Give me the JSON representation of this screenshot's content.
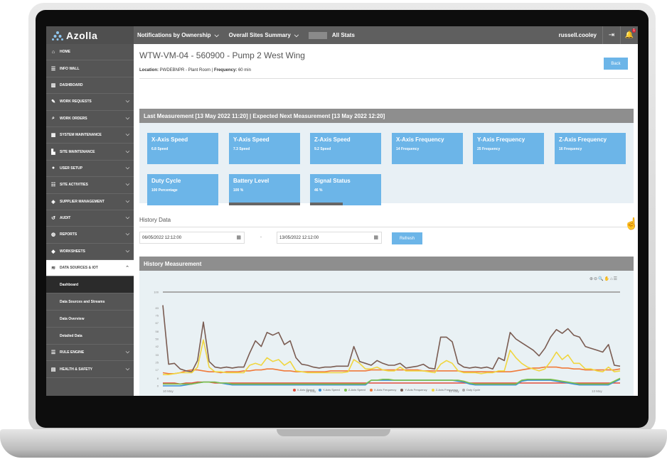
{
  "app": {
    "name": "Azolla"
  },
  "topnav": {
    "items": [
      {
        "label": "Notifications by Ownership"
      },
      {
        "label": "Overall Sites Summary"
      },
      {
        "label": "All Stats"
      }
    ],
    "user": "russell.cooley",
    "notification_count": "1"
  },
  "sidebar": {
    "items": [
      {
        "label": "HOME",
        "icon": "home-icon"
      },
      {
        "label": "INFO WALL",
        "icon": "list-icon"
      },
      {
        "label": "DASHBOARD",
        "icon": "chart-icon"
      },
      {
        "label": "WORK REQUESTS",
        "icon": "pencil-icon"
      },
      {
        "label": "WORK ORDERS",
        "icon": "search-icon"
      },
      {
        "label": "SYSTEM MAINTENANCE",
        "icon": "grid-icon"
      },
      {
        "label": "SITE MAINTENANCE",
        "icon": "factory-icon"
      },
      {
        "label": "USER SETUP",
        "icon": "user-icon"
      },
      {
        "label": "SITE ACTIVITIES",
        "icon": "list-icon"
      },
      {
        "label": "SUPPLIER MANAGEMENT",
        "icon": "box-icon"
      },
      {
        "label": "AUDIT",
        "icon": "history-icon"
      },
      {
        "label": "REPORTS",
        "icon": "database-icon"
      },
      {
        "label": "WORKSHEETS",
        "icon": "layers-icon"
      },
      {
        "label": "DATA SOURCES & IOT",
        "icon": "wifi-icon"
      }
    ],
    "subitems": [
      {
        "label": "Dashboard"
      },
      {
        "label": "Data Sources and Streams"
      },
      {
        "label": "Data Overview"
      },
      {
        "label": "Detailed Data"
      }
    ],
    "bottom_items": [
      {
        "label": "RULE ENGINE",
        "icon": "list-icon"
      },
      {
        "label": "HEALTH & SAFETY",
        "icon": "document-icon"
      }
    ]
  },
  "page": {
    "title": "WTW-VM-04 - 560900 - Pump 2 West Wing",
    "location_label": "Location:",
    "location_value": "PWDEBNPR - Plant Room",
    "frequency_label": "Frequency:",
    "frequency_value": "60 min",
    "back_label": "Back"
  },
  "measurement": {
    "header": "Last Measurement [13 May 2022 11:20] | Expected Next Measurement [13 May 2022 12:20]",
    "cards": [
      {
        "title": "X-Axis Speed",
        "value": "6.8 Speed"
      },
      {
        "title": "Y-Axis Speed",
        "value": "7.3 Speed"
      },
      {
        "title": "Z-Axis Speed",
        "value": "9.2 Speed"
      },
      {
        "title": "X-Axis Frequency",
        "value": "14 Frequency"
      },
      {
        "title": "Y-Axis Frequency",
        "value": "25 Frequency"
      },
      {
        "title": "Z-Axis Frequency",
        "value": "16 Frequency"
      },
      {
        "title": "Duty Cycle",
        "value": "100 Percentage"
      },
      {
        "title": "Battery Level",
        "value": "100 %",
        "level": 1.0
      },
      {
        "title": "Signal Status",
        "value": "46 %",
        "level": 0.46
      }
    ]
  },
  "history": {
    "title": "History Data",
    "from": "06/05/2022 12:12:00",
    "separator": "-",
    "to": "13/05/2022 12:12:00",
    "refresh_label": "Refresh",
    "chart_header": "History Measurement",
    "toolbar": "⊕⊖🔍✋⌂☰"
  },
  "chart_data": {
    "type": "line",
    "title": "",
    "xlabel": "",
    "ylabel": "",
    "x_ticks": [
      "10 May",
      "11 May",
      "12 May",
      "13 May"
    ],
    "y_ticks": [
      "0",
      "8",
      "17",
      "25",
      "33",
      "42",
      "50",
      "58",
      "67",
      "75",
      "83",
      "100"
    ],
    "ylim": [
      0,
      100
    ],
    "grid": false,
    "legend_position": "bottom",
    "series": [
      {
        "name": "X-Axis Speed",
        "color": "#e14d3c",
        "values": [
          3,
          3,
          3,
          2,
          3,
          3,
          4,
          4,
          4,
          3,
          3,
          3,
          3,
          3,
          3,
          3,
          3,
          3,
          3,
          3,
          3,
          3,
          3,
          3,
          3,
          3,
          3,
          3,
          3,
          3,
          3,
          3,
          3,
          3,
          3,
          3,
          3,
          3,
          3,
          3,
          3,
          3,
          3,
          3,
          3,
          3,
          3,
          3,
          3,
          3,
          3,
          3,
          3,
          3,
          3,
          3,
          3,
          3,
          3,
          3,
          3,
          3,
          3,
          3,
          3,
          3,
          3,
          3,
          3,
          3,
          3,
          3,
          3,
          3,
          3,
          3,
          3,
          3,
          3,
          3
        ]
      },
      {
        "name": "Y-Axis Speed",
        "color": "#3d8fd6",
        "values": [
          0,
          0,
          0,
          0,
          1,
          2,
          3,
          4,
          4,
          4,
          3,
          2,
          1,
          1,
          1,
          1,
          1,
          1,
          1,
          1,
          1,
          1,
          1,
          1,
          1,
          1,
          1,
          1,
          1,
          1,
          1,
          1,
          1,
          1,
          1,
          1,
          6,
          6,
          6,
          6,
          6,
          6,
          6,
          6,
          6,
          6,
          6,
          6,
          6,
          6,
          6,
          5,
          4,
          2,
          1,
          1,
          1,
          1,
          1,
          1,
          1,
          1,
          5,
          6,
          6,
          6,
          6,
          6,
          5,
          4,
          3,
          2,
          1,
          1,
          1,
          1,
          1,
          1,
          4,
          7
        ]
      },
      {
        "name": "Z-Axis Speed",
        "color": "#7cc04b",
        "values": [
          2,
          2,
          2,
          2,
          2,
          2,
          3,
          4,
          4,
          4,
          3,
          3,
          2,
          2,
          2,
          2,
          2,
          2,
          2,
          2,
          2,
          2,
          2,
          2,
          2,
          2,
          2,
          2,
          2,
          2,
          2,
          2,
          2,
          2,
          2,
          2,
          6,
          6,
          7,
          7,
          6,
          6,
          6,
          6,
          6,
          6,
          6,
          6,
          6,
          6,
          6,
          6,
          5,
          3,
          2,
          2,
          2,
          2,
          2,
          2,
          2,
          2,
          6,
          7,
          7,
          7,
          7,
          7,
          6,
          5,
          4,
          3,
          2,
          2,
          2,
          2,
          2,
          2,
          5,
          8
        ]
      },
      {
        "name": "X-Axis Frequency",
        "color": "#f07a3a",
        "values": [
          14,
          13,
          13,
          14,
          16,
          17,
          17,
          16,
          15,
          15,
          14,
          15,
          15,
          15,
          16,
          16,
          17,
          17,
          18,
          18,
          17,
          16,
          16,
          15,
          15,
          15,
          15,
          15,
          15,
          16,
          16,
          16,
          16,
          16,
          16,
          16,
          17,
          17,
          17,
          17,
          17,
          17,
          17,
          17,
          17,
          16,
          16,
          16,
          16,
          16,
          16,
          16,
          15,
          15,
          15,
          15,
          15,
          15,
          15,
          15,
          15,
          16,
          17,
          18,
          19,
          19,
          20,
          20,
          20,
          19,
          19,
          18,
          18,
          17,
          17,
          17,
          17,
          17,
          17,
          18
        ]
      },
      {
        "name": "Y-Axis Frequency",
        "color": "#7a5c52",
        "values": [
          86,
          23,
          24,
          18,
          16,
          15,
          27,
          68,
          26,
          20,
          19,
          20,
          19,
          20,
          20,
          35,
          48,
          42,
          57,
          54,
          57,
          44,
          48,
          30,
          23,
          22,
          20,
          19,
          20,
          20,
          21,
          21,
          21,
          42,
          26,
          24,
          22,
          27,
          24,
          22,
          22,
          24,
          19,
          20,
          21,
          23,
          19,
          18,
          52,
          52,
          47,
          24,
          20,
          19,
          20,
          19,
          20,
          18,
          30,
          27,
          57,
          50,
          46,
          42,
          38,
          32,
          40,
          52,
          60,
          56,
          61,
          54,
          52,
          42,
          40,
          38,
          36,
          44,
          22,
          21
        ]
      },
      {
        "name": "Z-Axis Frequency",
        "color": "#f0d640",
        "values": [
          12,
          12,
          13,
          14,
          14,
          14,
          20,
          49,
          20,
          15,
          15,
          14,
          14,
          14,
          14,
          22,
          24,
          22,
          30,
          26,
          28,
          22,
          26,
          16,
          15,
          14,
          14,
          14,
          14,
          14,
          14,
          14,
          15,
          28,
          24,
          18,
          18,
          20,
          17,
          16,
          16,
          20,
          16,
          16,
          16,
          16,
          15,
          14,
          23,
          27,
          24,
          16,
          14,
          14,
          14,
          13,
          14,
          14,
          16,
          16,
          38,
          30,
          24,
          20,
          18,
          16,
          18,
          26,
          36,
          28,
          33,
          24,
          24,
          18,
          18,
          16,
          15,
          20,
          15,
          16
        ]
      },
      {
        "name": "Duty Cycle",
        "color": "#a9a9a9",
        "values": [
          100,
          100,
          100,
          100,
          100,
          100,
          100,
          100,
          100,
          100,
          100,
          100,
          100,
          100,
          100,
          100,
          100,
          100,
          100,
          100,
          100,
          100,
          100,
          100,
          100,
          100,
          100,
          100,
          100,
          100,
          100,
          100,
          100,
          100,
          100,
          100,
          100,
          100,
          100,
          100,
          100,
          100,
          100,
          100,
          100,
          100,
          100,
          100,
          100,
          100,
          100,
          100,
          100,
          100,
          100,
          100,
          100,
          100,
          100,
          100,
          100,
          100,
          100,
          100,
          100,
          100,
          100,
          100,
          100,
          100,
          100,
          100,
          100,
          100,
          100,
          100,
          100,
          100,
          100,
          100
        ]
      }
    ]
  }
}
